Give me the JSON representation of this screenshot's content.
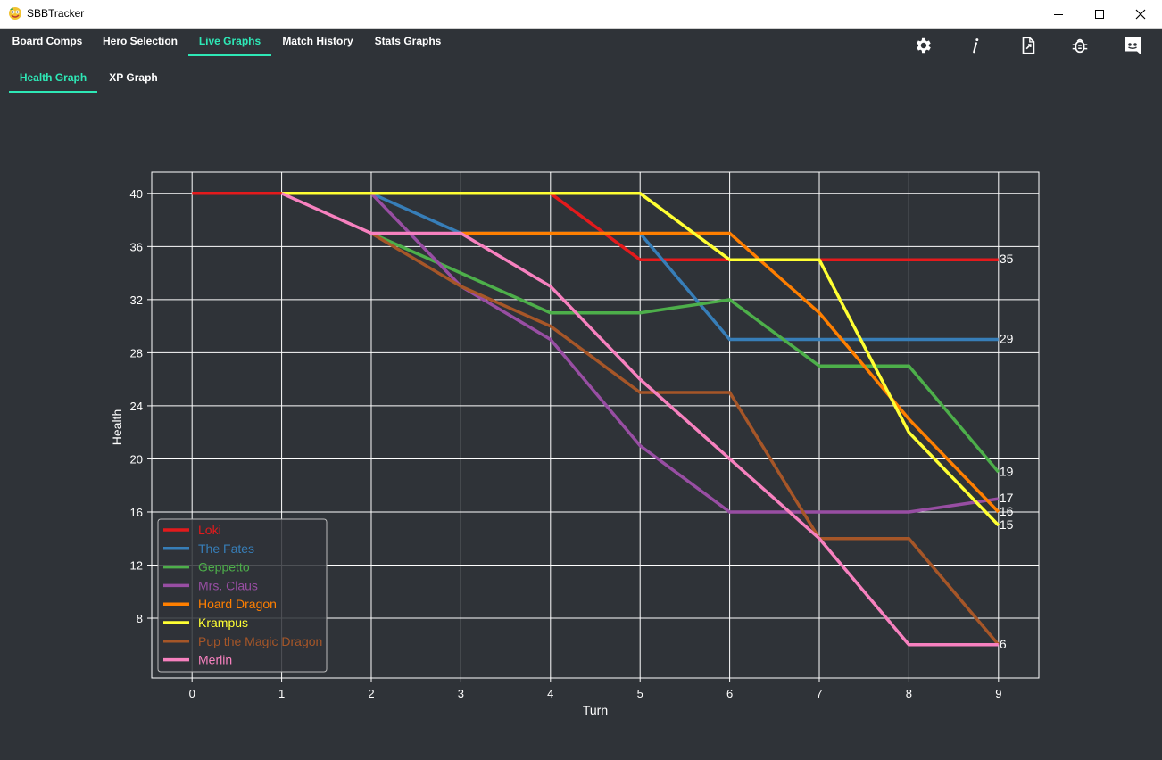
{
  "window": {
    "title": "SBBTracker",
    "minimize_icon": "minimize-icon",
    "maximize_icon": "maximize-icon",
    "close_icon": "close-icon"
  },
  "tabs": [
    {
      "label": "Board Comps",
      "active": false
    },
    {
      "label": "Hero Selection",
      "active": false
    },
    {
      "label": "Live Graphs",
      "active": true
    },
    {
      "label": "Match History",
      "active": false
    },
    {
      "label": "Stats Graphs",
      "active": false
    }
  ],
  "subtabs": [
    {
      "label": "Health Graph",
      "active": true
    },
    {
      "label": "XP Graph",
      "active": false
    }
  ],
  "toolbar": {
    "icons": [
      "gear-icon",
      "info-icon",
      "export-file-icon",
      "bug-icon",
      "discord-icon"
    ],
    "accent": "#2ee8b6"
  },
  "chart_data": {
    "type": "line",
    "title": "",
    "xlabel": "Turn",
    "ylabel": "Health",
    "x": [
      0,
      1,
      2,
      3,
      4,
      5,
      6,
      7,
      8,
      9
    ],
    "xlim": [
      -0.45,
      9.45
    ],
    "ylim": [
      3.5,
      41.6
    ],
    "yticks": [
      8,
      12,
      16,
      20,
      24,
      28,
      32,
      36,
      40
    ],
    "grid": true,
    "legend_position": "bottom-left",
    "series": [
      {
        "name": "Loki",
        "color": "#e41a1c",
        "x": [
          0,
          1,
          2,
          3,
          4,
          5,
          6,
          7,
          8,
          9
        ],
        "values": [
          40,
          40,
          40,
          40,
          40,
          35,
          35,
          35,
          35,
          35
        ],
        "end_label": "35"
      },
      {
        "name": "The Fates",
        "color": "#377eb8",
        "x": [
          2,
          3,
          4,
          5,
          6,
          7,
          8,
          9
        ],
        "values": [
          40,
          37,
          37,
          37,
          29,
          29,
          29,
          29
        ],
        "end_label": "29"
      },
      {
        "name": "Geppetto",
        "color": "#4daf4a",
        "x": [
          2,
          3,
          4,
          5,
          6,
          7,
          8,
          9
        ],
        "values": [
          37,
          34,
          31,
          31,
          32,
          27,
          27,
          19
        ],
        "end_label": "19"
      },
      {
        "name": "Mrs. Claus",
        "color": "#984ea3",
        "x": [
          2,
          3,
          4,
          5,
          6,
          7,
          8,
          9
        ],
        "values": [
          40,
          33,
          29,
          21,
          16,
          16,
          16,
          17
        ],
        "end_label": "17"
      },
      {
        "name": "Hoard Dragon",
        "color": "#ff7f00",
        "x": [
          3,
          4,
          5,
          6,
          7,
          8,
          9
        ],
        "values": [
          37,
          37,
          37,
          37,
          31,
          23,
          16
        ],
        "end_label": "16"
      },
      {
        "name": "Krampus",
        "color": "#ffff33",
        "x": [
          1,
          2,
          3,
          4,
          5,
          6,
          7,
          8,
          9
        ],
        "values": [
          40,
          40,
          40,
          40,
          40,
          35,
          35,
          22,
          15
        ],
        "end_label": "15"
      },
      {
        "name": "Pup the Magic Dragon",
        "color": "#a65628",
        "x": [
          2,
          3,
          4,
          5,
          6,
          7,
          8,
          9
        ],
        "values": [
          37,
          33,
          30,
          25,
          25,
          14,
          14,
          6
        ],
        "end_label": ""
      },
      {
        "name": "Merlin",
        "color": "#f781bf",
        "x": [
          1,
          2,
          3,
          4,
          5,
          6,
          7,
          8,
          9
        ],
        "values": [
          40,
          37,
          37,
          33,
          26,
          20,
          14,
          6,
          6
        ],
        "end_label": "6"
      }
    ]
  }
}
